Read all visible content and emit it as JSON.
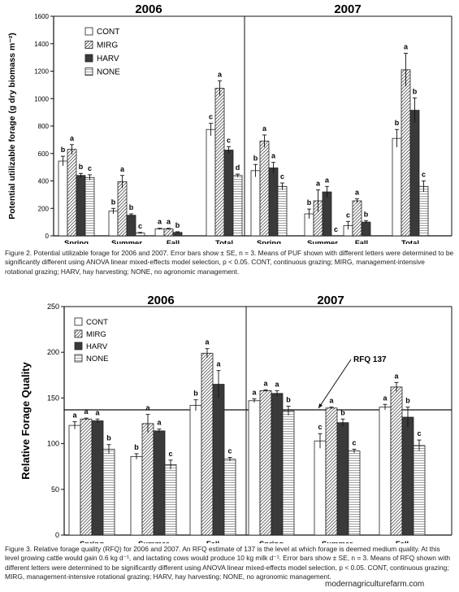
{
  "chart_data": [
    {
      "type": "bar",
      "panels": [
        "2006",
        "2007"
      ],
      "categories": [
        "Spring",
        "Summer",
        "Fall",
        "Total"
      ],
      "ylabel": "Potential utilizable forage (g dry biomass m⁻²)",
      "ylim": [
        0,
        1600
      ],
      "yticks": [
        0,
        200,
        400,
        600,
        800,
        1000,
        1200,
        1400,
        1600
      ],
      "legend": [
        "CONT",
        "MIRG",
        "HARV",
        "NONE"
      ],
      "legend_position": "top-left",
      "grid": false,
      "series": [
        {
          "name": "CONT",
          "values": {
            "2006": [
              545,
              180,
              50,
              775
            ],
            "2007": [
              475,
              160,
              75,
              710
            ]
          },
          "errors": {
            "2006": [
              35,
              20,
              5,
              45
            ],
            "2007": [
              45,
              35,
              30,
              65
            ]
          },
          "letters": {
            "2006": [
              "b",
              "b",
              "a",
              "c"
            ],
            "2007": [
              "b",
              "b",
              "c",
              "b"
            ]
          }
        },
        {
          "name": "MIRG",
          "values": {
            "2006": [
              630,
              395,
              50,
              1075
            ],
            "2007": [
              690,
              255,
              255,
              1210
            ]
          },
          "errors": {
            "2006": [
              35,
              45,
              5,
              55
            ],
            "2007": [
              45,
              80,
              15,
              120
            ]
          },
          "letters": {
            "2006": [
              "a",
              "a",
              "a",
              "a"
            ],
            "2007": [
              "a",
              "a",
              "a",
              "a"
            ]
          }
        },
        {
          "name": "HARV",
          "values": {
            "2006": [
              440,
              150,
              25,
              625
            ],
            "2007": [
              495,
              320,
              100,
              915
            ]
          },
          "errors": {
            "2006": [
              15,
              10,
              5,
              25
            ],
            "2007": [
              40,
              40,
              10,
              90
            ]
          },
          "letters": {
            "2006": [
              "b",
              "b",
              "b",
              "c"
            ],
            "2007": [
              "a",
              "a",
              "b",
              "b"
            ]
          }
        },
        {
          "name": "NONE",
          "values": {
            "2006": [
              425,
              20,
              0,
              440
            ],
            "2007": [
              360,
              0,
              0,
              360
            ]
          },
          "errors": {
            "2006": [
              20,
              5,
              0,
              10
            ],
            "2007": [
              25,
              0,
              0,
              40
            ]
          },
          "letters": {
            "2006": [
              "c",
              "c",
              "",
              "d"
            ],
            "2007": [
              "c",
              "c",
              "",
              "c"
            ]
          }
        }
      ]
    },
    {
      "type": "bar",
      "panels": [
        "2006",
        "2007"
      ],
      "categories": [
        "Spring",
        "Summer",
        "Fall"
      ],
      "ylabel": "Relative Forage Quality",
      "ylim": [
        0,
        250
      ],
      "yticks": [
        0,
        50,
        100,
        150,
        200,
        250
      ],
      "legend": [
        "CONT",
        "MIRG",
        "HARV",
        "NONE"
      ],
      "legend_position": "top-left",
      "grid": false,
      "reference_line": {
        "value": 137,
        "label": "RFQ 137"
      },
      "series": [
        {
          "name": "CONT",
          "values": {
            "2006": [
              120,
              86,
              142
            ],
            "2007": [
              147,
              103,
              140
            ]
          },
          "errors": {
            "2006": [
              4,
              3,
              6
            ],
            "2007": [
              2,
              8,
              3
            ]
          },
          "letters": {
            "2006": [
              "a",
              "b",
              "b"
            ],
            "2007": [
              "a",
              "c",
              "a"
            ]
          }
        },
        {
          "name": "MIRG",
          "values": {
            "2006": [
              127,
              122,
              199
            ],
            "2007": [
              158,
              139,
              162
            ]
          },
          "errors": {
            "2006": [
              1,
              10,
              5
            ],
            "2007": [
              1,
              1,
              5
            ]
          },
          "letters": {
            "2006": [
              "a",
              "a",
              "a"
            ],
            "2007": [
              "a",
              "a",
              "a"
            ]
          }
        },
        {
          "name": "HARV",
          "values": {
            "2006": [
              125,
              114,
              165
            ],
            "2007": [
              155,
              123,
              129
            ]
          },
          "errors": {
            "2006": [
              2,
              2,
              15
            ],
            "2007": [
              3,
              4,
              11
            ]
          },
          "letters": {
            "2006": [
              "a",
              "a",
              "a"
            ],
            "2007": [
              "a",
              "b",
              "b"
            ]
          }
        },
        {
          "name": "NONE",
          "values": {
            "2006": [
              94,
              77,
              83
            ],
            "2007": [
              136,
              92,
              98
            ]
          },
          "errors": {
            "2006": [
              5,
              5,
              2
            ],
            "2007": [
              5,
              2,
              6
            ]
          },
          "letters": {
            "2006": [
              "b",
              "c",
              "c"
            ],
            "2007": [
              "b",
              "c",
              "c"
            ]
          }
        }
      ]
    }
  ],
  "captions": {
    "fig2": "Figure 2. Potential utilizable forage for 2006 and 2007. Error bars show ± SE, n = 3. Means of PUF shown with different letters were determined to be significantly different using ANOVA linear mixed-effects model selection, p < 0.05. CONT, continuous grazing; MIRG, management-intensive rotational grazing; HARV, hay harvesting; NONE, no agronomic management.",
    "fig3": "Figure 3. Relative forage quality (RFQ) for 2006 and 2007. An RFQ estimate of 137 is the level at which forage is deemed medium quality. At this level growing cattle would gain 0.6 kg d⁻¹, and lactating cows would produce 10 kg milk d⁻¹. Error bars show ± SE, n = 3. Means of RFQ shown with different letters were determined to be significantly different using ANOVA linear mixed-effects model selection, p < 0.05. CONT, continuous grazing; MIRG, management-intensive rotational grazing; HARV, hay harvesting; NONE, no agronomic management."
  },
  "watermark": "modernagriculturefarm.com",
  "colors": {
    "cont": "#ffffff",
    "harv": "#3a3a3a",
    "outline": "#222222"
  }
}
